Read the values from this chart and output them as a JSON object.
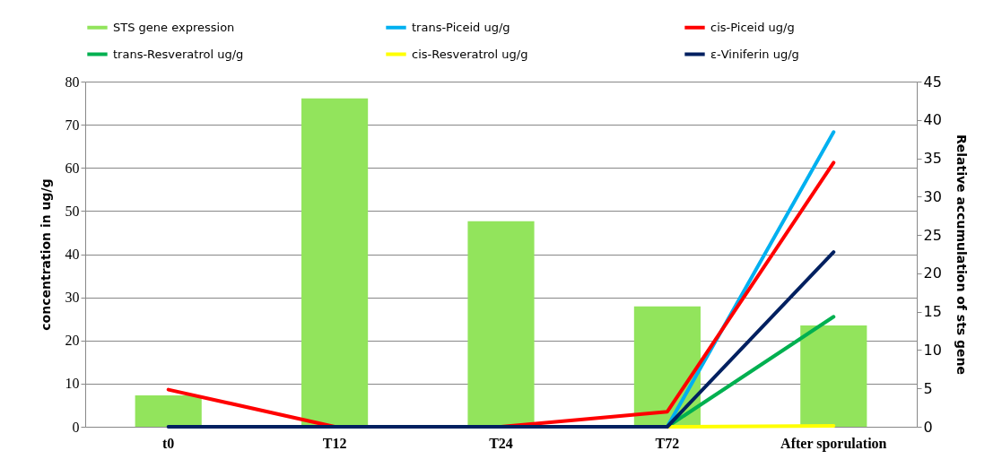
{
  "chart_data": {
    "type": "bar",
    "categories": [
      "t0",
      "T12",
      "T24",
      "T72",
      "After sporulation"
    ],
    "ylabel": "concentration in  ug/g",
    "y2label": "Relative accumulation of sts gene",
    "ylim": [
      0,
      80
    ],
    "yticks": [
      0,
      10,
      20,
      30,
      40,
      50,
      60,
      70,
      80
    ],
    "y2lim": [
      0,
      45
    ],
    "y2ticks": [
      0,
      5,
      10,
      15,
      20,
      25,
      30,
      35,
      40,
      45
    ],
    "grid": "y",
    "legend": "top",
    "marker": "none",
    "line_style": "solid",
    "series": [
      {
        "name": "STS gene expression",
        "axis": "y2",
        "color": "#92e45c",
        "values": [
          4.1,
          42.8,
          26.8,
          15.7,
          13.2
        ]
      },
      {
        "name": "trans-Piceid ug/g",
        "type": "line",
        "color": "#00b0f0",
        "values": [
          null,
          null,
          null,
          0,
          68.3
        ]
      },
      {
        "name": "cis-Piceid ug/g",
        "type": "line",
        "color": "#ff0000",
        "values": [
          8.6,
          0,
          0,
          3.5,
          61.2
        ]
      },
      {
        "name": "trans-Resveratrol ug/g",
        "type": "line",
        "color": "#00b050",
        "values": [
          null,
          null,
          null,
          0,
          25.5
        ]
      },
      {
        "name": "cis-Resveratrol ug/g",
        "type": "line",
        "color": "#ffff00",
        "values": [
          null,
          null,
          null,
          0,
          0.2
        ]
      },
      {
        "name": "ε-Viniferin ug/g",
        "type": "line",
        "color": "#002060",
        "values": [
          0,
          0,
          0,
          0,
          40.5
        ]
      }
    ]
  }
}
